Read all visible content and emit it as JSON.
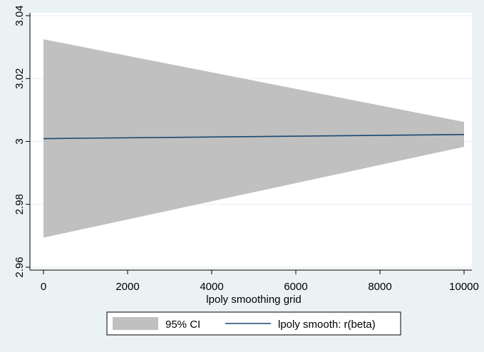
{
  "chart_data": {
    "type": "area",
    "title": "",
    "xlabel": "lpoly smoothing grid",
    "ylabel": "",
    "xlim": [
      0,
      10000
    ],
    "ylim": [
      2.96,
      3.04
    ],
    "xticks": [
      0,
      2000,
      4000,
      6000,
      8000,
      10000
    ],
    "xtick_labels": [
      "0",
      "2000",
      "4000",
      "6000",
      "8000",
      "10000"
    ],
    "yticks": [
      2.96,
      2.98,
      3.0,
      3.02,
      3.04
    ],
    "ytick_labels": [
      "2.96",
      "2.98",
      "3",
      "3.02",
      "3.04"
    ],
    "grid": "horizontal",
    "legend_position": "bottom",
    "band": {
      "name": "95% CI",
      "x": [
        0,
        10000
      ],
      "lower": [
        2.9694,
        2.9983
      ],
      "upper": [
        3.0325,
        3.0062
      ],
      "color": "#c0c0c0"
    },
    "series": [
      {
        "name": "lpoly smooth: r(beta)",
        "x": [
          0,
          10000
        ],
        "y": [
          3.0009,
          3.0022
        ],
        "color": "#1a476f"
      }
    ]
  },
  "colors": {
    "background": "#eaf2f3",
    "plot_background": "#ffffff",
    "band": "#c0c0c0",
    "line": "#1a476f"
  }
}
